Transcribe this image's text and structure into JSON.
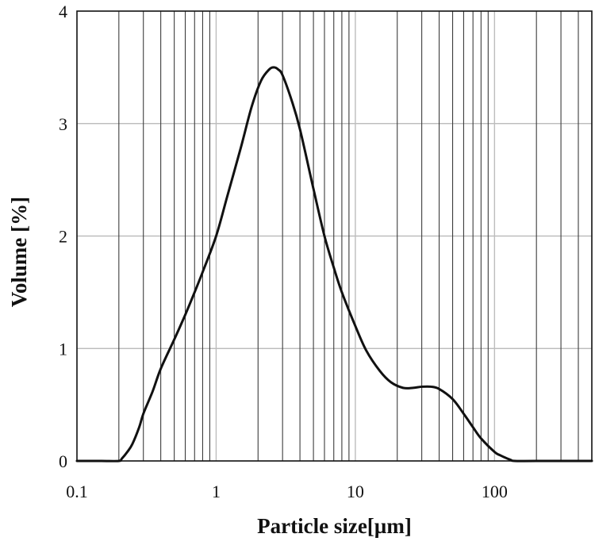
{
  "chart_data": {
    "type": "line",
    "title": "",
    "xlabel": "Particle size[µm]",
    "ylabel": "Volume [%]",
    "xscale": "log",
    "xlim": [
      0.1,
      500
    ],
    "ylim": [
      0,
      4
    ],
    "grid": true,
    "legend": "none",
    "xticks": [
      {
        "value": 0.1,
        "label": "0.1"
      },
      {
        "value": 1,
        "label": "1"
      },
      {
        "value": 10,
        "label": "10"
      },
      {
        "value": 100,
        "label": "100"
      }
    ],
    "yticks": [
      {
        "value": 0,
        "label": "0"
      },
      {
        "value": 1,
        "label": "1"
      },
      {
        "value": 2,
        "label": "2"
      },
      {
        "value": 3,
        "label": "3"
      },
      {
        "value": 4,
        "label": "4"
      }
    ],
    "line_color": "#111111",
    "series": [
      {
        "x": [
          0.1,
          0.15,
          0.2,
          0.21,
          0.23,
          0.25,
          0.28,
          0.3,
          0.35,
          0.4,
          0.5,
          0.6,
          0.7,
          0.8,
          1.0,
          1.2,
          1.5,
          1.8,
          2.1,
          2.4,
          2.6,
          2.8,
          3.0,
          3.5,
          4.0,
          5.0,
          6.0,
          7.0,
          8.0,
          10,
          12,
          15,
          18,
          22,
          26,
          30,
          35,
          40,
          50,
          60,
          70,
          80,
          100,
          110,
          130,
          140,
          200,
          500
        ],
        "y": [
          0,
          0,
          0,
          0.02,
          0.08,
          0.15,
          0.3,
          0.42,
          0.62,
          0.82,
          1.08,
          1.3,
          1.5,
          1.68,
          2.0,
          2.35,
          2.78,
          3.15,
          3.38,
          3.48,
          3.5,
          3.48,
          3.43,
          3.2,
          2.95,
          2.42,
          2.0,
          1.72,
          1.5,
          1.2,
          0.98,
          0.8,
          0.7,
          0.65,
          0.65,
          0.66,
          0.66,
          0.64,
          0.55,
          0.42,
          0.3,
          0.2,
          0.08,
          0.05,
          0.01,
          0,
          0,
          0
        ]
      }
    ]
  }
}
